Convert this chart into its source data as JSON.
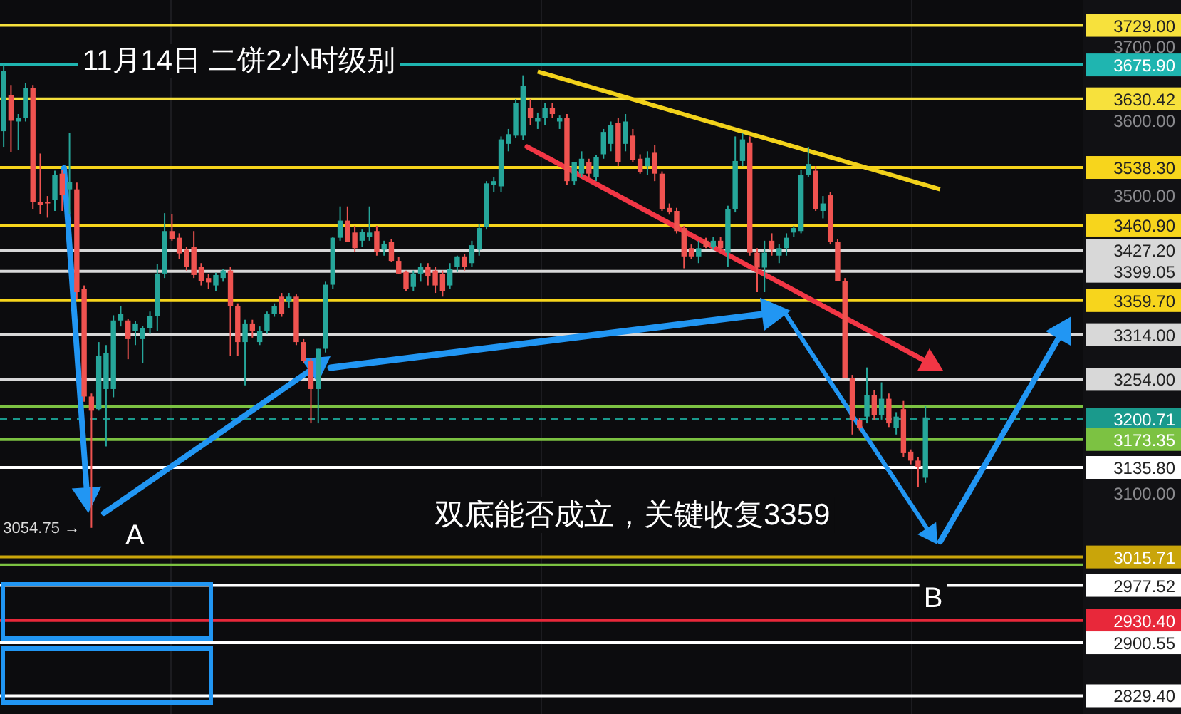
{
  "chart_data": {
    "type": "candlestick",
    "title": "11月14日 二饼2小时级别",
    "annotations": [
      "双底能否成立，关键收复3359",
      "A",
      "B",
      "3054.75 →"
    ],
    "colors": [
      "#26a69a",
      "#ef5350",
      "#26a69a",
      "#26a69a",
      "#ef5350",
      "#ef5350",
      "#ef5350",
      "#26a69a",
      "#ef5350",
      "#26a69a",
      "#ef5350",
      "#ef5350",
      "#ef5350",
      "#26a69a",
      "#26a69a",
      "#26a69a",
      "#26a69a",
      "#ef5350",
      "#26a69a",
      "#26a69a",
      "#26a69a",
      "#26a69a",
      "#26a69a",
      "#ef5350",
      "#ef5350",
      "#ef5350",
      "#ef5350",
      "#ef5350",
      "#ef5350",
      "#26a69a",
      "#26a69a",
      "#ef5350",
      "#ef5350",
      "#26a69a",
      "#ef5350",
      "#26a69a",
      "#26a69a",
      "#26a69a",
      "#ef5350",
      "#26a69a",
      "#ef5350",
      "#ef5350",
      "#ef5350",
      "#26a69a",
      "#26a69a",
      "#26a69a",
      "#26a69a",
      "#ef5350",
      "#ef5350",
      "#26a69a",
      "#26a69a",
      "#ef5350",
      "#26a69a",
      "#ef5350",
      "#ef5350",
      "#ef5350",
      "#26a69a",
      "#26a69a",
      "#ef5350",
      "#ef5350",
      "#ef5350",
      "#26a69a",
      "#26a69a",
      "#ef5350",
      "#26a69a",
      "#26a69a",
      "#26a69a",
      "#26a69a",
      "#26a69a",
      "#26a69a",
      "#26a69a",
      "#26a69a",
      "#ef5350",
      "#26a69a",
      "#26a69a",
      "#ef5350",
      "#26a69a",
      "#ef5350",
      "#26a69a",
      "#26a69a",
      "#ef5350",
      "#26a69a",
      "#26a69a",
      "#26a69a",
      "#ef5350",
      "#26a69a",
      "#ef5350",
      "#ef5350",
      "#26a69a",
      "#ef5350",
      "#ef5350",
      "#ef5350",
      "#ef5350",
      "#ef5350",
      "#ef5350",
      "#26a69a",
      "#ef5350",
      "#26a69a",
      "#ef5350",
      "#26a69a",
      "#26a69a",
      "#26a69a",
      "#ef5350",
      "#ef5350",
      "#26a69a",
      "#ef5350",
      "#26a69a",
      "#26a69a",
      "#26a69a",
      "#26a69a",
      "#26a69a",
      "#ef5350",
      "#26a69a",
      "#ef5350",
      "#ef5350",
      "#ef5350",
      "#ef5350",
      "#ef5350",
      "#26a69a",
      "#ef5350",
      "#26a69a",
      "#ef5350",
      "#26a69a",
      "#ef5350",
      "#ef5350",
      "#ef5350",
      "#26a69a",
      null,
      null,
      null,
      null,
      null,
      null,
      null,
      null,
      null,
      null,
      null,
      null,
      null,
      null,
      null,
      null,
      null,
      null,
      null,
      null,
      null
    ],
    "ylim": [
      2805,
      3763
    ],
    "yticks": [
      {
        "value": 3100,
        "label": "3100.00"
      },
      {
        "value": 3500,
        "label": "3500.00"
      },
      {
        "value": 3600,
        "label": "3600.00"
      },
      {
        "value": 3700,
        "label": "3700.00"
      }
    ],
    "categories": [
      null,
      null,
      null,
      null,
      null,
      null,
      null,
      null,
      null,
      null,
      null,
      null,
      null,
      null,
      null,
      null,
      null,
      null,
      null,
      null,
      null,
      null,
      null,
      null,
      null,
      null,
      null,
      null,
      null,
      null,
      null,
      null,
      null,
      null,
      null,
      null,
      null,
      null,
      null,
      null,
      null,
      null,
      null,
      null,
      null,
      null,
      null,
      null,
      null,
      null,
      null,
      null,
      null,
      null,
      null,
      null,
      null,
      null,
      null,
      null,
      null,
      null,
      null,
      null,
      null,
      null,
      null,
      null,
      null,
      null,
      null,
      null,
      null,
      null,
      null,
      null,
      null,
      null,
      null,
      null,
      null,
      null,
      null,
      null,
      null,
      null,
      null,
      null,
      null,
      null,
      null,
      null,
      null,
      null,
      null,
      null,
      null,
      null,
      null,
      null,
      null,
      null,
      null,
      null,
      null,
      null,
      null,
      null,
      null,
      null,
      null,
      null,
      null,
      null,
      null,
      null,
      null,
      null,
      null,
      null,
      null,
      null,
      null,
      null,
      null,
      null,
      null,
      null,
      null,
      null,
      null,
      null,
      null,
      null,
      null,
      null,
      null,
      null,
      null,
      null,
      null,
      null,
      null,
      null,
      null,
      null,
      null,
      null
    ],
    "ohlc": [
      [
        3587,
        3677,
        3566,
        3668
      ],
      [
        3635,
        3649,
        3559,
        3601
      ],
      [
        3600,
        3610,
        3562,
        3605
      ],
      [
        3605,
        3652,
        3600,
        3645
      ],
      [
        3645,
        3649,
        3482,
        3492
      ],
      [
        3492,
        3557,
        3476,
        3488
      ],
      [
        3492,
        3500,
        3471,
        3490
      ],
      [
        3495,
        3534,
        3480,
        3528
      ],
      [
        3530,
        3535,
        3480,
        3501
      ],
      [
        3509,
        3585,
        3476,
        3519
      ],
      [
        3509,
        3518,
        3361,
        3371
      ],
      [
        3375,
        3380,
        3224,
        3231
      ],
      [
        3231,
        3235,
        3054.75,
        3212
      ],
      [
        3214,
        3304,
        3212,
        3285
      ],
      [
        3241,
        3300,
        3164,
        3289
      ],
      [
        3241,
        3340,
        3230,
        3333
      ],
      [
        3333,
        3352,
        3325,
        3342
      ],
      [
        3333,
        3335,
        3281,
        3308
      ],
      [
        3319,
        3332,
        3300,
        3329
      ],
      [
        3308,
        3326,
        3276,
        3323
      ],
      [
        3323,
        3345,
        3315,
        3339
      ],
      [
        3339,
        3409,
        3319,
        3396
      ],
      [
        3396,
        3477,
        3390,
        3453
      ],
      [
        3453,
        3476,
        3440,
        3442
      ],
      [
        3444,
        3450,
        3415,
        3423
      ],
      [
        3428,
        3432,
        3400,
        3405
      ],
      [
        3432,
        3453,
        3390,
        3394
      ],
      [
        3405,
        3410,
        3380,
        3386
      ],
      [
        3390,
        3395,
        3375,
        3384
      ],
      [
        3380,
        3397,
        3372,
        3394
      ],
      [
        3390,
        3402,
        3385,
        3400
      ],
      [
        3400,
        3405,
        3285,
        3352
      ],
      [
        3352,
        3356,
        3285,
        3304
      ],
      [
        3304,
        3334,
        3246,
        3329
      ],
      [
        3329,
        3334,
        3310,
        3319
      ],
      [
        3304,
        3325,
        3300,
        3319
      ],
      [
        3319,
        3345,
        3315,
        3342
      ],
      [
        3342,
        3356,
        3338,
        3352
      ],
      [
        3365,
        3370,
        3338,
        3342
      ],
      [
        3358,
        3370,
        3350,
        3365
      ],
      [
        3365,
        3368,
        3300,
        3304
      ],
      [
        3304,
        3308,
        3276,
        3279
      ],
      [
        3279,
        3282,
        3195,
        3241
      ],
      [
        3241,
        3295,
        3195,
        3295
      ],
      [
        3295,
        3385,
        3290,
        3381
      ],
      [
        3381,
        3445,
        3375,
        3444
      ],
      [
        3444,
        3486,
        3440,
        3467
      ],
      [
        3467,
        3486,
        3438,
        3438
      ],
      [
        3451,
        3460,
        3425,
        3430
      ],
      [
        3440,
        3455,
        3432,
        3452
      ],
      [
        3445,
        3486,
        3440,
        3451
      ],
      [
        3453,
        3460,
        3420,
        3425
      ],
      [
        3428,
        3440,
        3420,
        3436
      ],
      [
        3438,
        3442,
        3412,
        3413
      ],
      [
        3413,
        3418,
        3395,
        3396
      ],
      [
        3398,
        3400,
        3372,
        3375
      ],
      [
        3378,
        3400,
        3372,
        3396
      ],
      [
        3396,
        3410,
        3385,
        3405
      ],
      [
        3405,
        3410,
        3380,
        3392
      ],
      [
        3400,
        3405,
        3370,
        3380
      ],
      [
        3395,
        3400,
        3365,
        3372
      ],
      [
        3380,
        3410,
        3375,
        3402
      ],
      [
        3405,
        3420,
        3398,
        3419
      ],
      [
        3419,
        3422,
        3400,
        3405
      ],
      [
        3410,
        3440,
        3405,
        3434
      ],
      [
        3428,
        3462,
        3420,
        3457
      ],
      [
        3459,
        3520,
        3455,
        3517
      ],
      [
        3515,
        3525,
        3505,
        3520
      ],
      [
        3513,
        3580,
        3505,
        3576
      ],
      [
        3570,
        3590,
        3560,
        3583
      ],
      [
        3581,
        3630,
        3578,
        3625
      ],
      [
        3581,
        3662,
        3575,
        3648
      ],
      [
        3618,
        3630,
        3595,
        3605
      ],
      [
        3600,
        3612,
        3590,
        3605
      ],
      [
        3605,
        3625,
        3595,
        3618
      ],
      [
        3618,
        3625,
        3605,
        3610
      ],
      [
        3600,
        3608,
        3590,
        3605
      ],
      [
        3605,
        3610,
        3515,
        3520
      ],
      [
        3520,
        3545,
        3515,
        3545
      ],
      [
        3530,
        3560,
        3525,
        3550
      ],
      [
        3545,
        3550,
        3525,
        3530
      ],
      [
        3525,
        3555,
        3520,
        3552
      ],
      [
        3556,
        3590,
        3550,
        3586
      ],
      [
        3570,
        3600,
        3560,
        3595
      ],
      [
        3598,
        3605,
        3540,
        3545
      ],
      [
        3570,
        3610,
        3560,
        3600
      ],
      [
        3581,
        3590,
        3545,
        3548
      ],
      [
        3550,
        3556,
        3530,
        3532
      ],
      [
        3540,
        3560,
        3528,
        3551
      ],
      [
        3558,
        3568,
        3520,
        3530
      ],
      [
        3530,
        3533,
        3480,
        3482
      ],
      [
        3484,
        3490,
        3475,
        3478
      ],
      [
        3480,
        3484,
        3450,
        3453
      ],
      [
        3457,
        3460,
        3403,
        3419
      ],
      [
        3430,
        3435,
        3415,
        3419
      ],
      [
        3419,
        3440,
        3410,
        3430
      ],
      [
        3440,
        3444,
        3430,
        3432
      ],
      [
        3432,
        3445,
        3428,
        3440
      ],
      [
        3440,
        3445,
        3425,
        3430
      ],
      [
        3424,
        3487,
        3405,
        3482
      ],
      [
        3482,
        3580,
        3478,
        3547
      ],
      [
        3547,
        3585,
        3540,
        3576
      ],
      [
        3572,
        3580,
        3420,
        3424
      ],
      [
        3424,
        3430,
        3371,
        3404
      ],
      [
        3404,
        3440,
        3371,
        3424
      ],
      [
        3440,
        3450,
        3420,
        3428
      ],
      [
        3420,
        3436,
        3410,
        3430
      ],
      [
        3430,
        3450,
        3420,
        3444
      ],
      [
        3451,
        3460,
        3445,
        3457
      ],
      [
        3453,
        3535,
        3450,
        3528
      ],
      [
        3528,
        3566,
        3525,
        3543
      ],
      [
        3534,
        3540,
        3480,
        3482
      ],
      [
        3480,
        3500,
        3470,
        3490
      ],
      [
        3501,
        3505,
        3435,
        3438
      ],
      [
        3438,
        3442,
        3386,
        3386
      ],
      [
        3386,
        3390,
        3256,
        3256
      ],
      [
        3256,
        3260,
        3180,
        3199
      ],
      [
        3199,
        3202,
        3185,
        3189
      ],
      [
        3204,
        3270,
        3195,
        3233
      ],
      [
        3233,
        3240,
        3200,
        3206
      ],
      [
        3206,
        3250,
        3200,
        3228
      ],
      [
        3228,
        3235,
        3190,
        3195
      ],
      [
        3189,
        3210,
        3180,
        3204
      ],
      [
        3214,
        3225,
        3150,
        3155
      ],
      [
        3157,
        3160,
        3140,
        3145
      ],
      [
        3145,
        3150,
        3109,
        3136
      ],
      [
        3122,
        3218,
        3115,
        3203
      ],
      null,
      null,
      null,
      null,
      null,
      null,
      null,
      null,
      null,
      null,
      null,
      null,
      null,
      null,
      null,
      null,
      null,
      null,
      null,
      null,
      null
    ],
    "series": [
      {
        "type": "line",
        "color": "#f2d21b",
        "values": [
          null,
          null,
          null,
          null,
          null,
          null,
          null,
          null,
          null,
          null,
          null,
          null,
          null,
          null,
          null,
          null,
          null,
          null,
          null,
          null,
          null,
          null,
          null,
          null,
          null,
          null,
          null,
          null,
          null,
          null,
          null,
          null,
          null,
          null,
          null,
          null,
          null,
          null,
          null,
          null,
          null,
          null,
          null,
          null,
          null,
          null,
          null,
          null,
          null,
          null,
          null,
          null,
          null,
          null,
          null,
          null,
          null,
          null,
          null,
          null,
          null,
          null,
          null,
          null,
          null,
          null,
          null,
          null,
          null,
          null,
          null,
          null,
          null,
          3667,
          null,
          null,
          null,
          null,
          null,
          null,
          null,
          null,
          null,
          null,
          null,
          null,
          null,
          null,
          null,
          null,
          null,
          null,
          null,
          null,
          null,
          null,
          null,
          null,
          null,
          null,
          null,
          null,
          null,
          null,
          null,
          null,
          null,
          null,
          null,
          null,
          null,
          null,
          null,
          null,
          null,
          null,
          null,
          null,
          null,
          null,
          null,
          null,
          null,
          null,
          null,
          null,
          null,
          null,
          3509,
          null,
          null,
          null,
          null,
          null,
          null,
          null,
          null,
          null,
          null,
          null,
          null,
          null,
          null,
          null,
          null,
          null,
          null,
          null
        ]
      }
    ],
    "ref_lines": [
      {
        "axis": "y",
        "value": 3729.0,
        "label": "3729.00",
        "color": "#f7e13c"
      },
      {
        "axis": "y",
        "value": 3675.9,
        "label": "3675.90",
        "color": "#1fb5b0"
      },
      {
        "axis": "y",
        "value": 3630.42,
        "label": "3630.42",
        "color": "#f7e13c"
      },
      {
        "axis": "y",
        "value": 3538.3,
        "label": "3538.30",
        "color": "#f7d51c"
      },
      {
        "axis": "y",
        "value": 3460.9,
        "label": "3460.90",
        "color": "#f7d51c"
      },
      {
        "axis": "y",
        "value": 3427.2,
        "label": "3427.20",
        "color": "#d8d8d8"
      },
      {
        "axis": "y",
        "value": 3399.05,
        "label": "3399.05",
        "color": "#d8d8d8"
      },
      {
        "axis": "y",
        "value": 3359.7,
        "label": "3359.70",
        "color": "#f7d51c"
      },
      {
        "axis": "y",
        "value": 3314.0,
        "label": "3314.00",
        "color": "#d8d8d8"
      },
      {
        "axis": "y",
        "value": 3254.0,
        "label": "3254.00",
        "color": "#d8d8d8"
      },
      {
        "axis": "y",
        "value": 3218,
        "color": "#7cc242"
      },
      {
        "axis": "y",
        "value": 3200.71,
        "label": "3200.71",
        "color": "#1a9a8c",
        "line_style": "dashed"
      },
      {
        "axis": "y",
        "value": 3173.35,
        "label": "3173.35",
        "color": "#7cc242"
      },
      {
        "axis": "y",
        "value": 3135.8,
        "label": "3135.80",
        "color": "#ffffff"
      },
      {
        "axis": "y",
        "value": 3015.71,
        "label": "3015.71",
        "color": "#c9a50a"
      },
      {
        "axis": "y",
        "value": 3005,
        "color": "#7cc242"
      },
      {
        "axis": "y",
        "value": 2977.52,
        "label": "2977.52",
        "color": "#ffffff"
      },
      {
        "axis": "y",
        "value": 2930.4,
        "label": "2930.40",
        "color": "#e8283a"
      },
      {
        "axis": "y",
        "value": 2900.55,
        "label": "2900.55",
        "color": "#ffffff"
      },
      {
        "axis": "y",
        "value": 2829.4,
        "label": "2829.40",
        "color": "#ffffff"
      }
    ]
  }
}
